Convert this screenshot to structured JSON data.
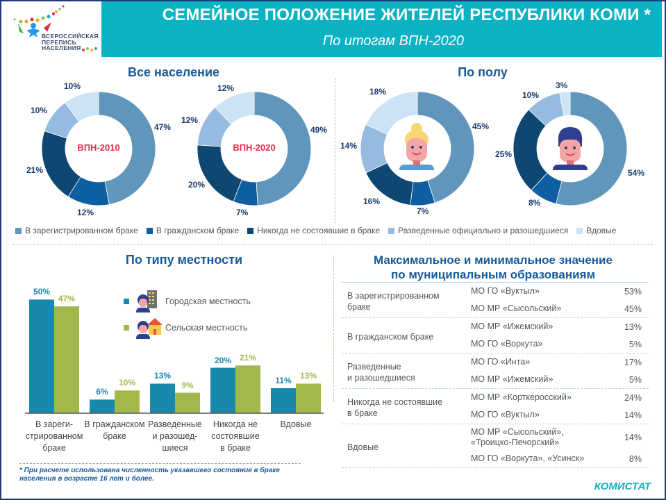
{
  "header": {
    "title": "СЕМЕЙНОЕ ПОЛОЖЕНИЕ ЖИТЕЛЕЙ РЕСПУБЛИКИ КОМИ *",
    "subtitle": "По итогам ВПН-2020",
    "logo_lines": [
      "ВСЕРОССИЙСКАЯ",
      "ПЕРЕПИСЬ",
      "НАСЕЛЕНИЯ"
    ]
  },
  "colors": {
    "registered": "#6096bb",
    "civil": "#0e5fa1",
    "never": "#0d4772",
    "divorced": "#97bbe0",
    "widowed": "#cce3f6",
    "urban": "#1789ad",
    "rural": "#a2b94a",
    "accent": "#0ab2c3",
    "title_blue": "#155a99"
  },
  "sections": {
    "all_population": "Все население",
    "by_sex": "По полу",
    "by_locality": "По типу местности",
    "municipal": [
      "Максимальное и минимальное значение",
      "по муниципальным образованиям"
    ]
  },
  "legend": [
    {
      "key": "registered",
      "label": "В зарегистрированном браке"
    },
    {
      "key": "civil",
      "label": "В гражданском браке"
    },
    {
      "key": "never",
      "label": "Никогда не состоявшие в браке"
    },
    {
      "key": "divorced",
      "label": "Разведенные официально  и разошедшиеся"
    },
    {
      "key": "widowed",
      "label": "Вдовые"
    }
  ],
  "chart_data": [
    {
      "type": "pie",
      "title": "ВПН-2010",
      "group": "Все население",
      "categories": [
        "В зарегистрированном браке",
        "В гражданском браке",
        "Никогда не состоявшие в браке",
        "Разведенные официально и разошедшиеся",
        "Вдовые"
      ],
      "values": [
        47,
        12,
        21,
        10,
        10
      ],
      "labels": [
        "47%",
        "12%",
        "21%",
        "10%",
        "10%"
      ]
    },
    {
      "type": "pie",
      "title": "ВПН-2020",
      "group": "Все население",
      "categories": [
        "В зарегистрированном браке",
        "В гражданском браке",
        "Никогда не состоявшие в браке",
        "Разведенные официально и разошедшиеся",
        "Вдовые"
      ],
      "values": [
        49,
        7,
        20,
        12,
        12
      ],
      "labels": [
        "49%",
        "7%",
        "20%",
        "12%",
        "12%"
      ]
    },
    {
      "type": "pie",
      "title": "Женщины",
      "group": "По полу",
      "categories": [
        "В зарегистрированном браке",
        "В гражданском браке",
        "Никогда не состоявшие в браке",
        "Разведенные официально и разошедшиеся",
        "Вдовые"
      ],
      "values": [
        45,
        7,
        16,
        14,
        18
      ],
      "labels": [
        "45%",
        "7%",
        "16%",
        "14%",
        "18%"
      ]
    },
    {
      "type": "pie",
      "title": "Мужчины",
      "group": "По полу",
      "categories": [
        "В зарегистрированном браке",
        "В гражданском браке",
        "Никогда не состоявшие в браке",
        "Разведенные официально и разошедшиеся",
        "Вдовые"
      ],
      "values": [
        54,
        8,
        25,
        10,
        3
      ],
      "labels": [
        "54%",
        "8%",
        "25%",
        "10%",
        "3%"
      ]
    },
    {
      "type": "bar",
      "title": "По типу местности",
      "categories": [
        "В зареги-\nстрированном\nбраке",
        "В гражданском\nбраке",
        "Разведенные\nи разошед-\nшиеся",
        "Никогда не\nсостоявшие\nв браке",
        "Вдовые"
      ],
      "series": [
        {
          "name": "Городская местность",
          "values": [
            50,
            6,
            13,
            20,
            11
          ],
          "labels": [
            "50%",
            "6%",
            "13%",
            "20%",
            "11%"
          ]
        },
        {
          "name": "Сельская местность",
          "values": [
            47,
            10,
            9,
            21,
            13
          ],
          "labels": [
            "47%",
            "10%",
            "9%",
            "21%",
            "13%"
          ]
        }
      ],
      "ylim": [
        0,
        55
      ],
      "legend_position": "top-right",
      "grid": false
    }
  ],
  "footnote": "* При расчете использована численность указавшего состояние в браке населения в возрасте 16 лет и более.",
  "table": {
    "groups": [
      {
        "category": "В зарегистрированном браке",
        "rows": [
          {
            "mo": "МО ГО «Вуктыл»",
            "value": "53%"
          },
          {
            "mo": "МО МР «Сысольский»",
            "value": "45%"
          }
        ]
      },
      {
        "category": "В гражданском браке",
        "rows": [
          {
            "mo": "МО МР «Ижемский»",
            "value": "13%"
          },
          {
            "mo": "МО ГО «Воркута»",
            "value": "5%"
          }
        ]
      },
      {
        "category": "Разведенные\nи разошедшиеся",
        "rows": [
          {
            "mo": "МО ГО «Инта»",
            "value": "17%"
          },
          {
            "mo": "МО МР «Ижемский»",
            "value": "5%"
          }
        ]
      },
      {
        "category": "Никогда не состоявшие\nв браке",
        "rows": [
          {
            "mo": "МО МР «Корткеросский»",
            "value": "24%"
          },
          {
            "mo": "МО ГО «Вуктыл»",
            "value": "14%"
          }
        ]
      },
      {
        "category": "Вдовые",
        "rows": [
          {
            "mo": "МО МР «Сысольский»,\n«Троицко-Печорский»",
            "value": "14%"
          },
          {
            "mo": "МО ГО «Воркута», «Усинск»",
            "value": "8%"
          }
        ]
      }
    ]
  },
  "source": "КОМИСТАТ"
}
